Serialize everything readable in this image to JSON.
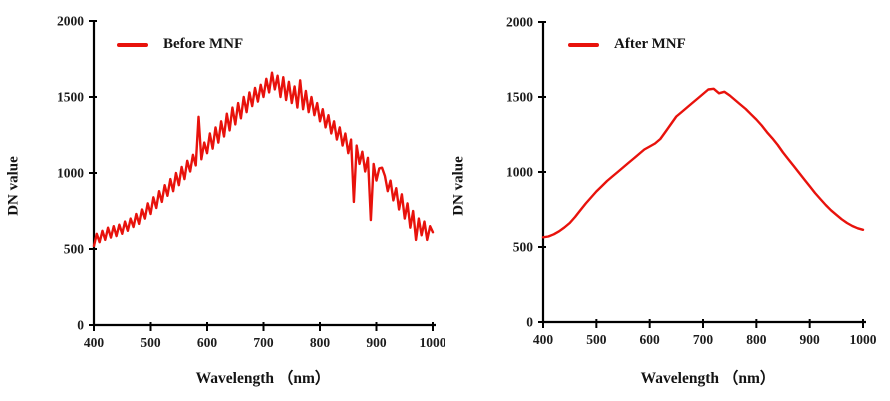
{
  "figure": {
    "background": "#ffffff"
  },
  "colors": {
    "series": "#e8120c",
    "axis": "#000000",
    "text": "#1c1c1c"
  },
  "chart_data": [
    {
      "type": "line",
      "title": "",
      "legend_label": "Before MNF",
      "legend_position": "top-left-inside",
      "xlabel": "Wavelength （nm）",
      "ylabel": "DN value",
      "xlim": [
        400,
        1000
      ],
      "ylim": [
        0,
        2000
      ],
      "xticks": [
        400,
        500,
        600,
        700,
        800,
        900,
        1000
      ],
      "yticks": [
        0,
        500,
        1000,
        1500,
        2000
      ],
      "grid": false,
      "line_color": "#e8120c",
      "x": [
        400,
        405,
        410,
        415,
        420,
        425,
        430,
        435,
        440,
        445,
        450,
        455,
        460,
        465,
        470,
        475,
        480,
        485,
        490,
        495,
        500,
        505,
        510,
        515,
        520,
        525,
        530,
        535,
        540,
        545,
        550,
        555,
        560,
        565,
        570,
        575,
        580,
        585,
        590,
        595,
        600,
        605,
        610,
        615,
        620,
        625,
        630,
        635,
        640,
        645,
        650,
        655,
        660,
        665,
        670,
        675,
        680,
        685,
        690,
        695,
        700,
        705,
        710,
        715,
        720,
        725,
        730,
        735,
        740,
        745,
        750,
        755,
        760,
        765,
        770,
        775,
        780,
        785,
        790,
        795,
        800,
        805,
        810,
        815,
        820,
        825,
        830,
        835,
        840,
        845,
        850,
        855,
        860,
        865,
        870,
        875,
        880,
        885,
        890,
        895,
        900,
        905,
        910,
        915,
        920,
        925,
        930,
        935,
        940,
        945,
        950,
        955,
        960,
        965,
        970,
        975,
        980,
        985,
        990,
        995,
        1000
      ],
      "y": [
        520,
        600,
        545,
        620,
        560,
        640,
        575,
        650,
        585,
        660,
        600,
        680,
        620,
        700,
        645,
        730,
        665,
        760,
        700,
        800,
        730,
        840,
        770,
        880,
        810,
        920,
        850,
        960,
        880,
        1000,
        920,
        1040,
        960,
        1080,
        1010,
        1120,
        1050,
        1370,
        1090,
        1200,
        1130,
        1260,
        1160,
        1300,
        1200,
        1340,
        1240,
        1390,
        1280,
        1430,
        1320,
        1460,
        1360,
        1500,
        1400,
        1530,
        1440,
        1560,
        1470,
        1580,
        1500,
        1620,
        1530,
        1660,
        1550,
        1640,
        1500,
        1630,
        1480,
        1600,
        1460,
        1570,
        1430,
        1610,
        1420,
        1540,
        1400,
        1500,
        1380,
        1460,
        1340,
        1420,
        1300,
        1380,
        1260,
        1340,
        1220,
        1300,
        1180,
        1260,
        1130,
        1220,
        810,
        1180,
        1060,
        1140,
        1010,
        1100,
        690,
        1060,
        950,
        1030,
        1035,
        980,
        880,
        950,
        820,
        900,
        760,
        860,
        700,
        800,
        640,
        750,
        560,
        700,
        590,
        680,
        560,
        650,
        610
      ]
    },
    {
      "type": "line",
      "title": "",
      "legend_label": "After MNF",
      "legend_position": "top-left-inside",
      "xlabel": "Wavelength （nm）",
      "ylabel": "DN value",
      "xlim": [
        400,
        1000
      ],
      "ylim": [
        0,
        2000
      ],
      "xticks": [
        400,
        500,
        600,
        700,
        800,
        900,
        1000
      ],
      "yticks": [
        0,
        500,
        1000,
        1500,
        2000
      ],
      "grid": false,
      "line_color": "#e8120c",
      "x": [
        400,
        410,
        420,
        430,
        440,
        450,
        460,
        470,
        480,
        490,
        500,
        510,
        520,
        530,
        540,
        550,
        560,
        570,
        580,
        590,
        600,
        610,
        620,
        630,
        640,
        650,
        660,
        670,
        680,
        690,
        700,
        710,
        720,
        730,
        740,
        750,
        760,
        770,
        780,
        790,
        800,
        810,
        820,
        830,
        840,
        850,
        860,
        870,
        880,
        890,
        900,
        910,
        920,
        930,
        940,
        950,
        960,
        970,
        980,
        990,
        1000
      ],
      "y": [
        565,
        570,
        585,
        605,
        630,
        660,
        700,
        745,
        790,
        830,
        870,
        905,
        940,
        970,
        1000,
        1030,
        1060,
        1090,
        1120,
        1150,
        1170,
        1190,
        1220,
        1270,
        1320,
        1370,
        1400,
        1430,
        1460,
        1490,
        1520,
        1550,
        1555,
        1525,
        1535,
        1510,
        1480,
        1450,
        1420,
        1385,
        1350,
        1310,
        1265,
        1225,
        1180,
        1130,
        1085,
        1040,
        995,
        950,
        905,
        860,
        820,
        780,
        745,
        715,
        685,
        660,
        640,
        625,
        615
      ]
    }
  ]
}
